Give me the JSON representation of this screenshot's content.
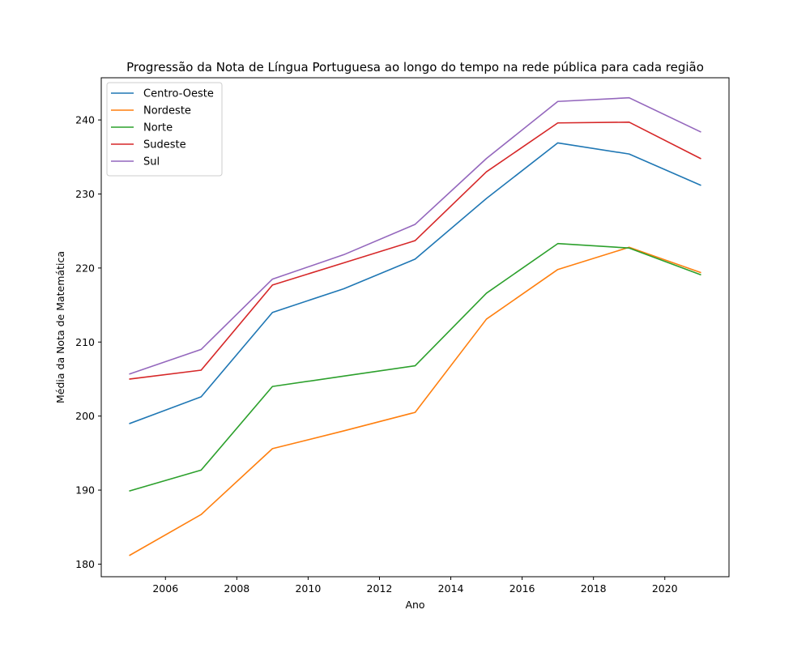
{
  "chart_data": {
    "type": "line",
    "title": "Progressão da Nota de Língua Portuguesa ao longo do tempo na rede pública para cada região",
    "xlabel": "Ano",
    "ylabel": "Média da Nota de Matemática",
    "xlim": [
      2004.2,
      2021.8
    ],
    "ylim": [
      178.3,
      245.7
    ],
    "xticks": [
      2006,
      2008,
      2010,
      2012,
      2014,
      2016,
      2018,
      2020
    ],
    "yticks": [
      180,
      190,
      200,
      210,
      220,
      230,
      240
    ],
    "grid": false,
    "legend_position": "top-left",
    "x": [
      2005,
      2007,
      2009,
      2011,
      2013,
      2015,
      2017,
      2019,
      2021
    ],
    "series": [
      {
        "name": "Centro-Oeste",
        "color": "#1f77b4",
        "values": [
          199.0,
          202.6,
          214.0,
          217.2,
          221.2,
          229.4,
          236.9,
          235.4,
          231.2
        ]
      },
      {
        "name": "Nordeste",
        "color": "#ff7f0e",
        "values": [
          181.2,
          186.7,
          195.6,
          198.0,
          200.5,
          213.1,
          219.8,
          222.8,
          219.4
        ]
      },
      {
        "name": "Norte",
        "color": "#2ca02c",
        "values": [
          189.9,
          192.7,
          204.0,
          205.4,
          206.8,
          216.6,
          223.3,
          222.7,
          219.1
        ]
      },
      {
        "name": "Sudeste",
        "color": "#d62728",
        "values": [
          205.0,
          206.2,
          217.7,
          220.7,
          223.7,
          233.0,
          239.6,
          239.7,
          234.8
        ]
      },
      {
        "name": "Sul",
        "color": "#9467bd",
        "values": [
          205.7,
          209.0,
          218.5,
          221.8,
          225.9,
          234.8,
          242.5,
          243.0,
          238.4
        ]
      }
    ]
  }
}
